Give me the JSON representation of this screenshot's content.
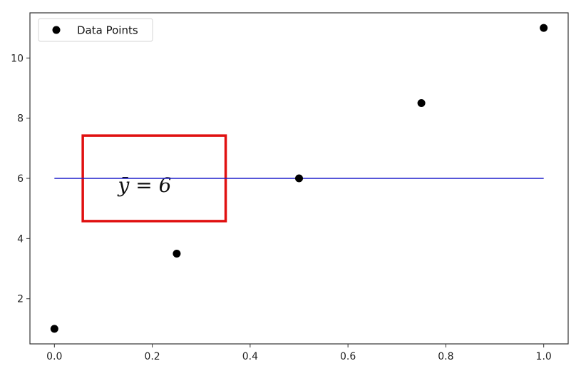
{
  "chart_data": {
    "type": "scatter",
    "title": "",
    "xlabel": "",
    "ylabel": "",
    "xlim": [
      -0.05,
      1.05
    ],
    "ylim": [
      0.5,
      11.5
    ],
    "x_ticks": [
      0.0,
      0.2,
      0.4,
      0.6,
      0.8,
      1.0
    ],
    "x_tick_labels": [
      "0.0",
      "0.2",
      "0.4",
      "0.6",
      "0.8",
      "1.0"
    ],
    "y_ticks": [
      2,
      4,
      6,
      8,
      10
    ],
    "y_tick_labels": [
      "2",
      "4",
      "6",
      "8",
      "10"
    ],
    "grid": false,
    "legend": {
      "position": "top-left",
      "entries": [
        "Data Points"
      ]
    },
    "series": [
      {
        "name": "Data Points",
        "type": "scatter",
        "color": "#000000",
        "x": [
          0.0,
          0.25,
          0.5,
          0.75,
          1.0
        ],
        "y": [
          1,
          3.5,
          6,
          8.5,
          11
        ]
      }
    ],
    "reference_line": {
      "y": 6,
      "x_range": [
        0.0,
        1.0
      ],
      "color": "#1f1fcc"
    },
    "annotation": {
      "text": "ȳ = 6",
      "box_color": "#e01010",
      "box_x_range": [
        0.058,
        0.35
      ],
      "box_y_range": [
        4.58,
        7.42
      ],
      "text_x": 0.13,
      "text_y": 5.55
    }
  }
}
